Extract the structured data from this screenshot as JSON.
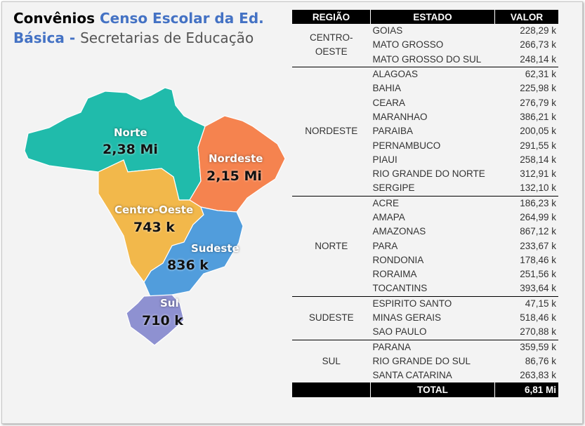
{
  "title": {
    "part1": "Convênios ",
    "part2": "Censo Escolar da Ed. Básica - ",
    "part3": "Secretarias de Educação"
  },
  "colors": {
    "Norte": "#20bbab",
    "Nordeste": "#f5834f",
    "Centro-Oeste": "#f2b84b",
    "Sudeste": "#519ddc",
    "Sul": "#8e91d1"
  },
  "map": {
    "regions": [
      {
        "name": "Norte",
        "value": "2,38 Mi"
      },
      {
        "name": "Nordeste",
        "value": "2,15 Mi"
      },
      {
        "name": "Centro-Oeste",
        "value": "743 k"
      },
      {
        "name": "Sudeste",
        "value": "836 k"
      },
      {
        "name": "Sul",
        "value": "710 k"
      }
    ]
  },
  "table": {
    "headers": [
      "REGIÃO",
      "ESTADO",
      "VALOR"
    ],
    "groups": [
      {
        "region": "CENTRO-OESTE",
        "rows": [
          [
            "GOIAS",
            "228,29 k"
          ],
          [
            "MATO GROSSO",
            "266,73 k"
          ],
          [
            "MATO GROSSO DO SUL",
            "248,14 k"
          ]
        ]
      },
      {
        "region": "NORDESTE",
        "rows": [
          [
            "ALAGOAS",
            "62,31 k"
          ],
          [
            "BAHIA",
            "225,98 k"
          ],
          [
            "CEARA",
            "276,79 k"
          ],
          [
            "MARANHAO",
            "386,21 k"
          ],
          [
            "PARAIBA",
            "200,05 k"
          ],
          [
            "PERNAMBUCO",
            "291,55 k"
          ],
          [
            "PIAUI",
            "258,14 k"
          ],
          [
            "RIO GRANDE DO NORTE",
            "312,91 k"
          ],
          [
            "SERGIPE",
            "132,10 k"
          ]
        ]
      },
      {
        "region": "NORTE",
        "rows": [
          [
            "ACRE",
            "186,23 k"
          ],
          [
            "AMAPA",
            "264,99 k"
          ],
          [
            "AMAZONAS",
            "867,12 k"
          ],
          [
            "PARA",
            "233,67 k"
          ],
          [
            "RONDONIA",
            "178,46 k"
          ],
          [
            "RORAIMA",
            "251,56 k"
          ],
          [
            "TOCANTINS",
            "393,64 k"
          ]
        ]
      },
      {
        "region": "SUDESTE",
        "rows": [
          [
            "ESPIRITO SANTO",
            "47,15 k"
          ],
          [
            "MINAS GERAIS",
            "518,46 k"
          ],
          [
            "SAO PAULO",
            "270,88 k"
          ]
        ]
      },
      {
        "region": "SUL",
        "rows": [
          [
            "PARANA",
            "359,59 k"
          ],
          [
            "RIO GRANDE DO SUL",
            "86,76 k"
          ],
          [
            "SANTA CATARINA",
            "263,83 k"
          ]
        ]
      }
    ],
    "total_label": "TOTAL",
    "total_value": "6,81 Mi"
  }
}
